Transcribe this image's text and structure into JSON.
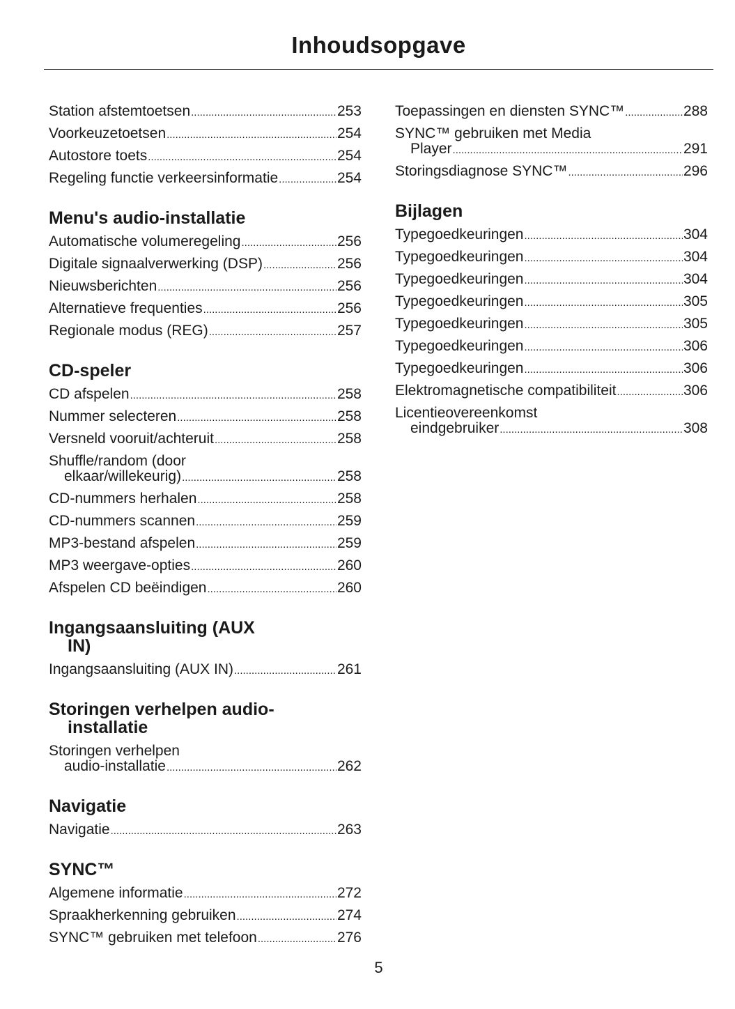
{
  "title": "Inhoudsopgave",
  "page_number": "5",
  "left_column": [
    {
      "heading": null,
      "entries": [
        {
          "text": "Station afstemtoetsen",
          "page": "253"
        },
        {
          "text": "Voorkeuzetoetsen",
          "page": "254"
        },
        {
          "text": "Autostore toets",
          "page": "254"
        },
        {
          "text": "Regeling functie verkeersinformatie",
          "page": "254"
        }
      ]
    },
    {
      "heading": [
        "Menu's audio-installatie"
      ],
      "entries": [
        {
          "text": "Automatische volumeregeling",
          "page": "256"
        },
        {
          "text": "Digitale signaalverwerking (DSP)",
          "page": "256"
        },
        {
          "text": "Nieuwsberichten",
          "page": "256"
        },
        {
          "text": "Alternatieve frequenties",
          "page": "256"
        },
        {
          "text": "Regionale modus (REG)",
          "page": "257"
        }
      ]
    },
    {
      "heading": [
        "CD-speler"
      ],
      "entries": [
        {
          "text": "CD afspelen",
          "page": "258"
        },
        {
          "text": "Nummer selecteren",
          "page": "258"
        },
        {
          "text": "Versneld vooruit/achteruit",
          "page": "258"
        },
        {
          "line1": "Shuffle/random (door",
          "text": "elkaar/willekeurig)",
          "page": "258"
        },
        {
          "text": "CD-nummers herhalen",
          "page": "258"
        },
        {
          "text": "CD-nummers scannen",
          "page": "259"
        },
        {
          "text": "MP3-bestand afspelen",
          "page": "259"
        },
        {
          "text": "MP3 weergave-opties",
          "page": "260"
        },
        {
          "text": "Afspelen CD beëindigen",
          "page": "260"
        }
      ]
    },
    {
      "heading": [
        "Ingangsaansluiting (AUX",
        "IN)"
      ],
      "entries": [
        {
          "text": "Ingangsaansluiting (AUX IN)",
          "page": "261"
        }
      ]
    },
    {
      "heading": [
        "Storingen verhelpen audio-",
        "installatie"
      ],
      "entries": [
        {
          "line1": "Storingen verhelpen",
          "text": "audio-installatie",
          "page": "262"
        }
      ]
    },
    {
      "heading": [
        "Navigatie"
      ],
      "entries": [
        {
          "text": "Navigatie",
          "page": "263"
        }
      ]
    },
    {
      "heading": [
        "SYNC™"
      ],
      "entries": [
        {
          "text": "Algemene informatie",
          "page": "272"
        },
        {
          "text": "Spraakherkenning gebruiken",
          "page": "274"
        },
        {
          "text": "SYNC™ gebruiken met telefoon",
          "page": "276"
        }
      ]
    }
  ],
  "right_column": [
    {
      "heading": null,
      "entries": [
        {
          "text": "Toepassingen en diensten SYNC™",
          "page": "288"
        },
        {
          "line1": "SYNC™ gebruiken met Media",
          "text": "Player",
          "page": "291"
        },
        {
          "text": "Storingsdiagnose SYNC™",
          "page": "296"
        }
      ]
    },
    {
      "heading": [
        "Bijlagen"
      ],
      "entries": [
        {
          "text": "Typegoedkeuringen",
          "page": "304"
        },
        {
          "text": "Typegoedkeuringen",
          "page": "304"
        },
        {
          "text": "Typegoedkeuringen",
          "page": "304"
        },
        {
          "text": "Typegoedkeuringen",
          "page": "305"
        },
        {
          "text": "Typegoedkeuringen",
          "page": "305"
        },
        {
          "text": "Typegoedkeuringen",
          "page": "306"
        },
        {
          "text": "Typegoedkeuringen",
          "page": "306"
        },
        {
          "text": "Elektromagnetische compatibiliteit",
          "page": "306"
        },
        {
          "line1": "Licentieovereenkomst",
          "text": "eindgebruiker",
          "page": "308"
        }
      ]
    }
  ]
}
